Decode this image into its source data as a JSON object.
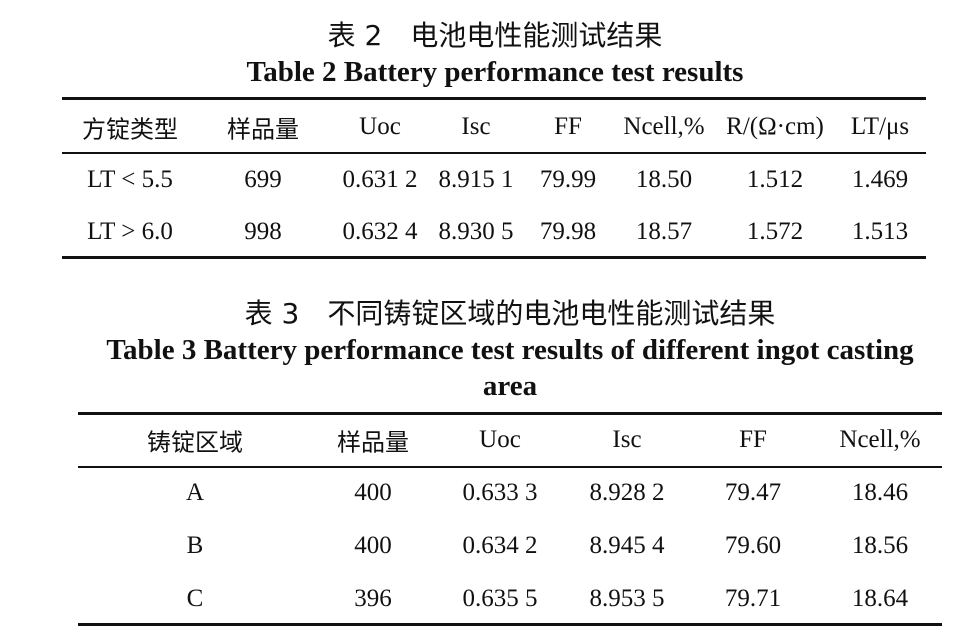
{
  "table2": {
    "title_cn": "表 2　电池电性能测试结果",
    "title_en": "Table 2 Battery performance test results",
    "header": [
      "方锭类型",
      "样品量",
      "Uoc",
      "Isc",
      "FF",
      "Ncell,%",
      "R/(Ω·cm)",
      "LT/μs"
    ],
    "rows": [
      [
        "LT < 5.5",
        "699",
        "0.631 2",
        "8.915 1",
        "79.99",
        "18.50",
        "1.512",
        "1.469"
      ],
      [
        "LT > 6.0",
        "998",
        "0.632 4",
        "8.930 5",
        "79.98",
        "18.57",
        "1.572",
        "1.513"
      ]
    ]
  },
  "table3": {
    "title_cn": "表 3　不同铸锭区域的电池电性能测试结果",
    "title_en": "Table 3 Battery performance test results of different ingot casting area",
    "header": [
      "铸锭区域",
      "样品量",
      "Uoc",
      "Isc",
      "FF",
      "Ncell,%"
    ],
    "rows": [
      [
        "A",
        "400",
        "0.633 3",
        "8.928 2",
        "79.47",
        "18.46"
      ],
      [
        "B",
        "400",
        "0.634 2",
        "8.945 4",
        "79.60",
        "18.56"
      ],
      [
        "C",
        "396",
        "0.635 5",
        "8.953 5",
        "79.71",
        "18.64"
      ]
    ]
  }
}
